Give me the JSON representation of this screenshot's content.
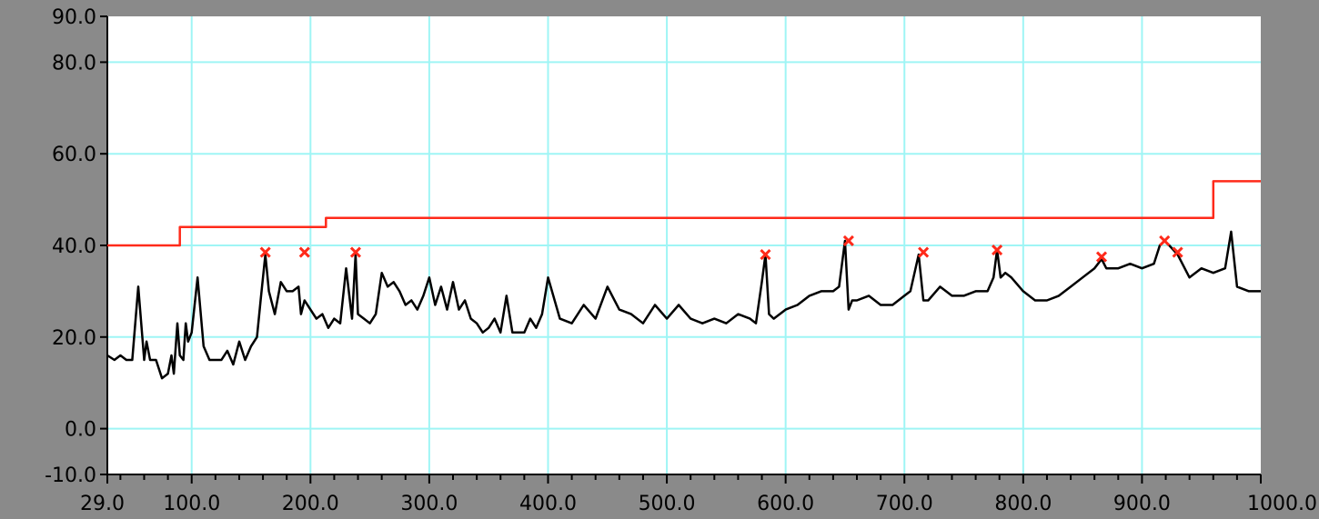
{
  "chart_data": {
    "type": "line",
    "title": "",
    "xlabel": "",
    "ylabel": "",
    "xlim": [
      29,
      1000
    ],
    "ylim": [
      -10,
      90
    ],
    "grid": true,
    "x_ticks": [
      100,
      200,
      300,
      400,
      500,
      600,
      700,
      800,
      900
    ],
    "x_tick_labels": [
      "29.0",
      "100.0",
      "200.0",
      "300.0",
      "400.0",
      "500.0",
      "600.0",
      "700.0",
      "800.0",
      "900.0",
      "1000.0"
    ],
    "x_tick_label_values": [
      29,
      100,
      200,
      300,
      400,
      500,
      600,
      700,
      800,
      900,
      1000
    ],
    "y_ticks": [
      -10,
      0,
      20,
      40,
      60,
      80,
      90
    ],
    "y_tick_labels": [
      "-10.0",
      "0.0",
      "20.0",
      "40.0",
      "60.0",
      "80.0",
      "90.0"
    ],
    "series": [
      {
        "role": "measurement",
        "color": "#000000",
        "x": [
          29,
          35,
          40,
          45,
          50,
          55,
          60,
          62,
          65,
          70,
          75,
          80,
          83,
          85,
          88,
          90,
          93,
          95,
          97,
          100,
          105,
          110,
          115,
          120,
          125,
          130,
          135,
          140,
          145,
          150,
          155,
          158,
          162,
          165,
          170,
          175,
          180,
          185,
          190,
          192,
          195,
          200,
          205,
          210,
          215,
          220,
          225,
          230,
          235,
          238,
          240,
          245,
          250,
          255,
          260,
          265,
          270,
          275,
          280,
          285,
          290,
          295,
          300,
          305,
          310,
          315,
          320,
          325,
          330,
          335,
          340,
          345,
          350,
          355,
          360,
          365,
          370,
          375,
          380,
          385,
          390,
          395,
          400,
          410,
          420,
          430,
          440,
          450,
          460,
          470,
          480,
          490,
          500,
          510,
          520,
          530,
          540,
          550,
          560,
          570,
          575,
          580,
          583,
          586,
          590,
          600,
          610,
          620,
          630,
          640,
          645,
          650,
          653,
          656,
          660,
          670,
          680,
          690,
          700,
          705,
          712,
          716,
          720,
          730,
          740,
          750,
          760,
          770,
          775,
          778,
          781,
          785,
          790,
          800,
          810,
          820,
          830,
          840,
          850,
          860,
          866,
          870,
          880,
          890,
          900,
          910,
          915,
          919,
          923,
          930,
          940,
          950,
          960,
          970,
          975,
          980,
          990,
          1000
        ],
        "values": [
          16,
          15,
          16,
          15,
          15,
          31,
          15,
          19,
          15,
          15,
          11,
          12,
          16,
          12,
          23,
          16,
          15,
          23,
          19,
          21,
          33,
          18,
          15,
          15,
          15,
          17,
          14,
          19,
          15,
          18,
          20,
          28,
          38,
          30,
          25,
          32,
          30,
          30,
          31,
          25,
          28,
          26,
          24,
          25,
          22,
          24,
          23,
          35,
          24,
          38,
          25,
          24,
          23,
          25,
          34,
          31,
          32,
          30,
          27,
          28,
          26,
          29,
          33,
          27,
          31,
          26,
          32,
          26,
          28,
          24,
          23,
          21,
          22,
          24,
          21,
          29,
          21,
          21,
          21,
          24,
          22,
          25,
          33,
          24,
          23,
          27,
          24,
          31,
          26,
          25,
          23,
          27,
          24,
          27,
          24,
          23,
          24,
          23,
          25,
          24,
          23,
          32,
          38,
          25,
          24,
          26,
          27,
          29,
          30,
          30,
          31,
          41,
          26,
          28,
          28,
          29,
          27,
          27,
          29,
          30,
          38,
          28,
          28,
          31,
          29,
          29,
          30,
          30,
          33,
          39,
          33,
          34,
          33,
          30,
          28,
          28,
          29,
          31,
          33,
          35,
          37,
          35,
          35,
          36,
          35,
          36,
          40,
          41,
          40,
          38,
          33,
          35,
          34,
          35,
          43,
          31,
          30,
          30
        ]
      },
      {
        "role": "limit",
        "color": "#ff2a1a",
        "step": true,
        "x": [
          29,
          90,
          90,
          213,
          213,
          960,
          960,
          1000
        ],
        "values": [
          40,
          40,
          44,
          44,
          46,
          46,
          54,
          54
        ]
      }
    ],
    "markers": {
      "color": "#ff2a1a",
      "symbol": "x",
      "points": [
        [
          162,
          38.5
        ],
        [
          195,
          38.5
        ],
        [
          238,
          38.5
        ],
        [
          583,
          38
        ],
        [
          653,
          41
        ],
        [
          716,
          38.5
        ],
        [
          778,
          39
        ],
        [
          866,
          37.5
        ],
        [
          919,
          41
        ],
        [
          930,
          38.5
        ]
      ]
    },
    "colors": {
      "frame": "#8a8a8a",
      "plot_background": "#ffffff",
      "grid": "#9ff5f5",
      "axis": "#000000",
      "tick_label": "#000000"
    }
  }
}
